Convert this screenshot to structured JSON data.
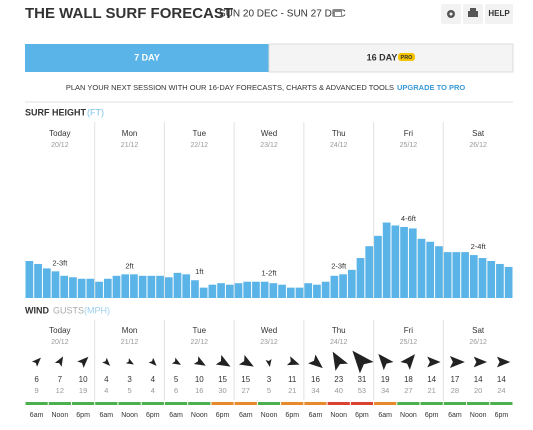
{
  "header": {
    "title": "THE WALL SURF FORECAST",
    "dates": "SUN 20 DEC - SUN 27 DEC",
    "help": "HELP"
  },
  "tabs": [
    {
      "label": "7 DAY"
    },
    {
      "label": "16 DAY",
      "badge": "PRO"
    }
  ],
  "promo": {
    "text": "PLAN YOUR NEXT SESSION WITH OUR 16-DAY FORECASTS, CHARTS & ADVANCED TOOLS",
    "link": "UPGRADE TO PRO"
  },
  "days": [
    {
      "name": "Today",
      "date": "20/12"
    },
    {
      "name": "Mon",
      "date": "21/12"
    },
    {
      "name": "Tue",
      "date": "22/12"
    },
    {
      "name": "Wed",
      "date": "23/12"
    },
    {
      "name": "Thu",
      "date": "24/12"
    },
    {
      "name": "Fri",
      "date": "25/12"
    },
    {
      "name": "Sat",
      "date": "26/12"
    }
  ],
  "chart_data": {
    "type": "bar",
    "title": "SURF HEIGHT",
    "unit": "(FT)",
    "ylim": [
      0,
      10
    ],
    "color": "#5ab4e8",
    "values": [
      2.5,
      2.3,
      2.0,
      1.8,
      1.5,
      1.4,
      1.3,
      1.3,
      1.1,
      1.3,
      1.5,
      1.6,
      1.6,
      1.5,
      1.5,
      1.5,
      1.4,
      1.7,
      1.6,
      1.2,
      0.7,
      0.9,
      1.0,
      0.9,
      1.0,
      1.1,
      1.1,
      1.1,
      1.0,
      0.9,
      0.7,
      0.7,
      1.0,
      0.9,
      1.1,
      1.5,
      1.6,
      1.9,
      2.7,
      3.5,
      4.2,
      5.1,
      4.9,
      4.8,
      4.7,
      4.0,
      3.8,
      3.5,
      3.1,
      3.1,
      3.1,
      2.9,
      2.7,
      2.5,
      2.3,
      2.1
    ],
    "day_labels": [
      "2-3ft",
      "2ft",
      "1ft",
      "1-2ft",
      "2-3ft",
      "4-6ft",
      "2-4ft"
    ]
  },
  "wind": {
    "title": "WIND",
    "gusts_label": "GUSTS",
    "unit": "(MPH)",
    "times": [
      "6am",
      "Noon",
      "6pm"
    ],
    "speed": [
      6,
      7,
      10,
      4,
      3,
      4,
      5,
      10,
      15,
      15,
      3,
      11,
      16,
      23,
      31,
      19,
      18,
      14,
      17,
      14,
      14
    ],
    "gusts": [
      9,
      12,
      19,
      4,
      5,
      4,
      6,
      16,
      30,
      27,
      5,
      21,
      34,
      40,
      53,
      34,
      27,
      21,
      28,
      20,
      24
    ],
    "direction": [
      45,
      30,
      45,
      135,
      120,
      135,
      120,
      120,
      120,
      120,
      170,
      110,
      130,
      -30,
      -40,
      -40,
      40,
      90,
      90,
      90,
      90
    ],
    "rating_colors": [
      "#4caf50",
      "#4caf50",
      "#4caf50",
      "#4caf50",
      "#4caf50",
      "#4caf50",
      "#4caf50",
      "#4caf50",
      "#e8892c",
      "#e8892c",
      "#4caf50",
      "#e8892c",
      "#e8892c",
      "#d9432f",
      "#d9432f",
      "#e8892c",
      "#4caf50",
      "#4caf50",
      "#4caf50",
      "#4caf50",
      "#4caf50"
    ]
  }
}
